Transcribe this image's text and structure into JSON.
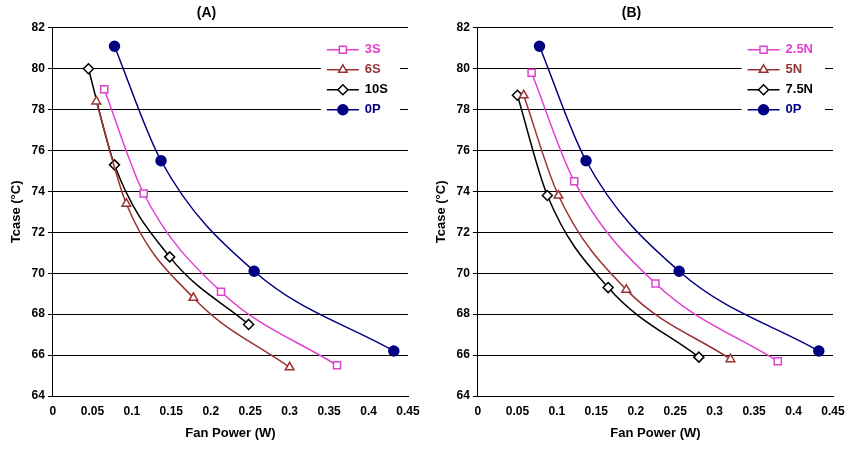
{
  "chart_data": [
    {
      "type": "line",
      "title": "(A)",
      "x_label": "Fan Power (W)",
      "y_label": "Tcase (°C)",
      "xlim": [
        0,
        0.45
      ],
      "xticks": [
        0,
        0.05,
        0.1,
        0.15,
        0.2,
        0.25,
        0.3,
        0.35,
        0.4,
        0.45
      ],
      "ylim": [
        64,
        82
      ],
      "yticks": [
        64,
        66,
        68,
        70,
        72,
        74,
        76,
        78,
        80,
        82
      ],
      "grid": true,
      "legend": "upper right",
      "series": [
        {
          "name": "3S",
          "color": "#e040d0",
          "marker": "open_square",
          "x": [
            0.065,
            0.115,
            0.213,
            0.36
          ],
          "values": [
            79.0,
            73.9,
            69.1,
            65.5
          ]
        },
        {
          "name": "6S",
          "color": "#993333",
          "marker": "open_triangle",
          "x": [
            0.055,
            0.093,
            0.178,
            0.3
          ],
          "values": [
            78.4,
            73.4,
            68.8,
            65.4
          ]
        },
        {
          "name": "10S",
          "color": "#000000",
          "marker": "open_diamond",
          "x": [
            0.045,
            0.078,
            0.148,
            0.248
          ],
          "values": [
            80.0,
            75.3,
            70.8,
            67.5
          ]
        },
        {
          "name": "0P",
          "color": "#000080",
          "marker": "circle",
          "x": [
            0.078,
            0.137,
            0.255,
            0.432
          ],
          "values": [
            81.1,
            75.5,
            70.1,
            66.2
          ]
        }
      ]
    },
    {
      "type": "line",
      "title": "(B)",
      "x_label": "Fan Power (W)",
      "y_label": "Tcase (°C)",
      "xlim": [
        0,
        0.45
      ],
      "xticks": [
        0,
        0.05,
        0.1,
        0.15,
        0.2,
        0.25,
        0.3,
        0.35,
        0.4,
        0.45
      ],
      "ylim": [
        64,
        82
      ],
      "yticks": [
        64,
        66,
        68,
        70,
        72,
        74,
        76,
        78,
        80,
        82
      ],
      "grid": true,
      "legend": "upper right",
      "series": [
        {
          "name": "2.5N",
          "color": "#e040d0",
          "marker": "open_square",
          "x": [
            0.068,
            0.122,
            0.225,
            0.38
          ],
          "values": [
            79.8,
            74.5,
            69.5,
            65.7
          ]
        },
        {
          "name": "5N",
          "color": "#993333",
          "marker": "open_triangle",
          "x": [
            0.058,
            0.102,
            0.188,
            0.32
          ],
          "values": [
            78.7,
            73.8,
            69.2,
            65.8
          ]
        },
        {
          "name": "7.5N",
          "color": "#000000",
          "marker": "open_diamond",
          "x": [
            0.05,
            0.088,
            0.165,
            0.28
          ],
          "values": [
            78.7,
            73.8,
            69.3,
            65.9
          ]
        },
        {
          "name": "0P",
          "color": "#000080",
          "marker": "circle",
          "x": [
            0.078,
            0.137,
            0.255,
            0.432
          ],
          "values": [
            81.1,
            75.5,
            70.1,
            66.2
          ]
        }
      ]
    }
  ]
}
